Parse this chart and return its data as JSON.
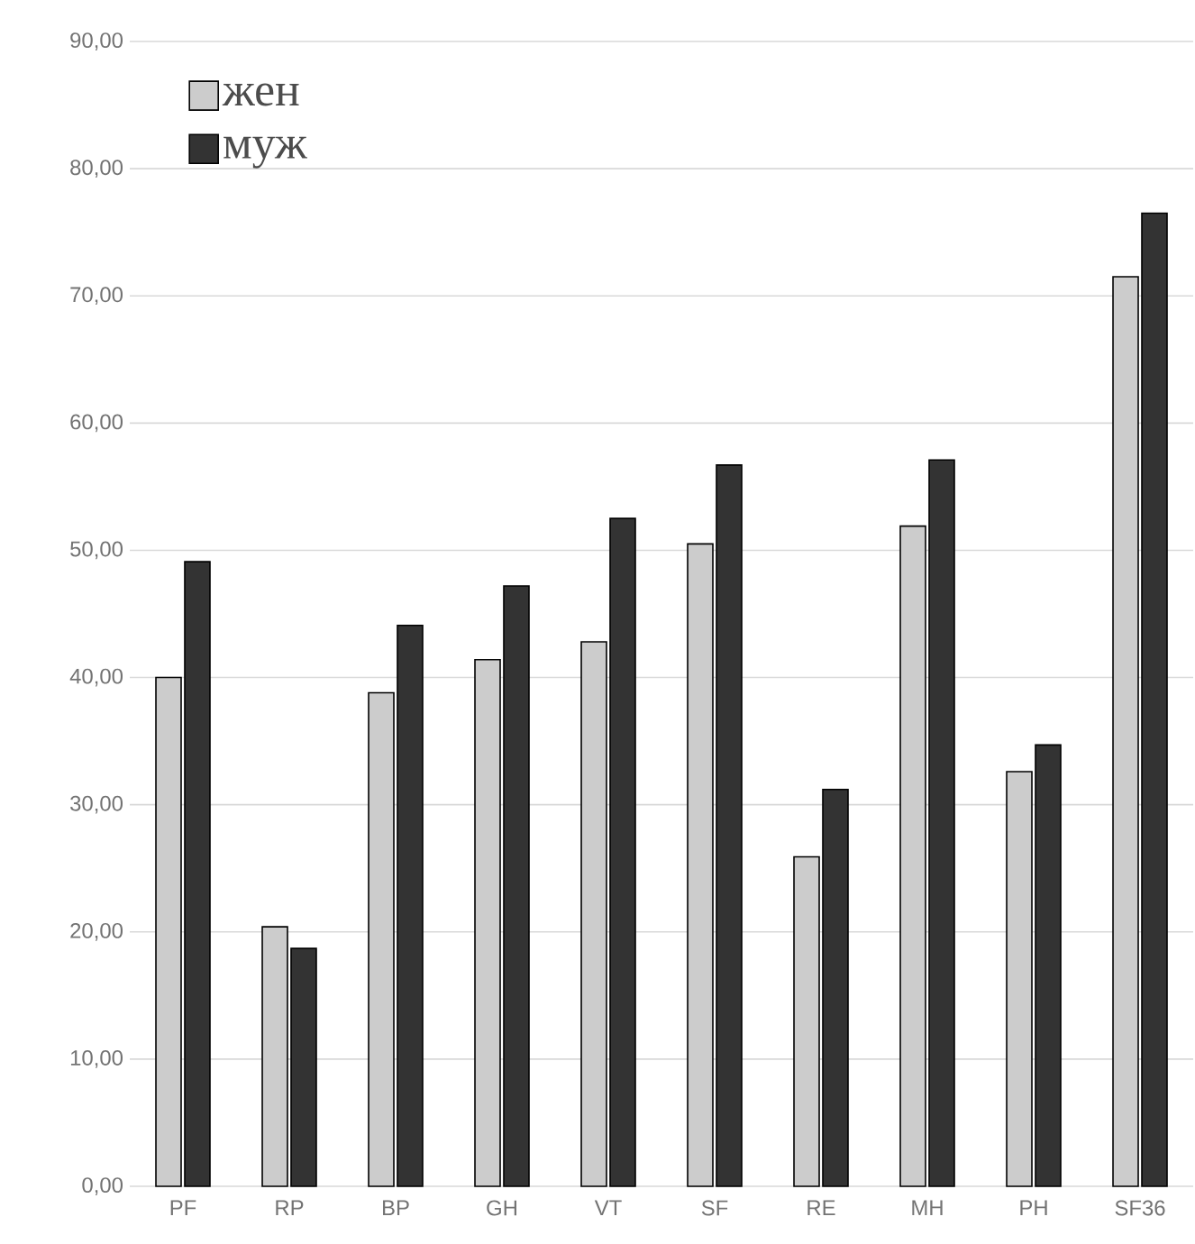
{
  "chart_data": {
    "type": "bar",
    "categories": [
      "PF",
      "RP",
      "BP",
      "GH",
      "VT",
      "SF",
      "RE",
      "MH",
      "PH",
      "SF36"
    ],
    "series": [
      {
        "name": "жен",
        "color": "#cccccc",
        "values": [
          40.0,
          20.4,
          38.8,
          41.4,
          42.8,
          50.5,
          25.9,
          51.9,
          32.6,
          71.5
        ]
      },
      {
        "name": "муж",
        "color": "#333333",
        "values": [
          49.1,
          18.7,
          44.1,
          47.2,
          52.5,
          56.7,
          31.2,
          57.1,
          34.7,
          76.5
        ]
      }
    ],
    "ylim": [
      0,
      90
    ],
    "yticks": [
      {
        "value": 0,
        "label": "0,00"
      },
      {
        "value": 10,
        "label": "10,00"
      },
      {
        "value": 20,
        "label": "20,00"
      },
      {
        "value": 30,
        "label": "30,00"
      },
      {
        "value": 40,
        "label": "40,00"
      },
      {
        "value": 50,
        "label": "50,00"
      },
      {
        "value": 60,
        "label": "60,00"
      },
      {
        "value": 70,
        "label": "70,00"
      },
      {
        "value": 80,
        "label": "80,00"
      },
      {
        "value": 90,
        "label": "90,00"
      }
    ],
    "grid": "y",
    "legend": "top left"
  }
}
